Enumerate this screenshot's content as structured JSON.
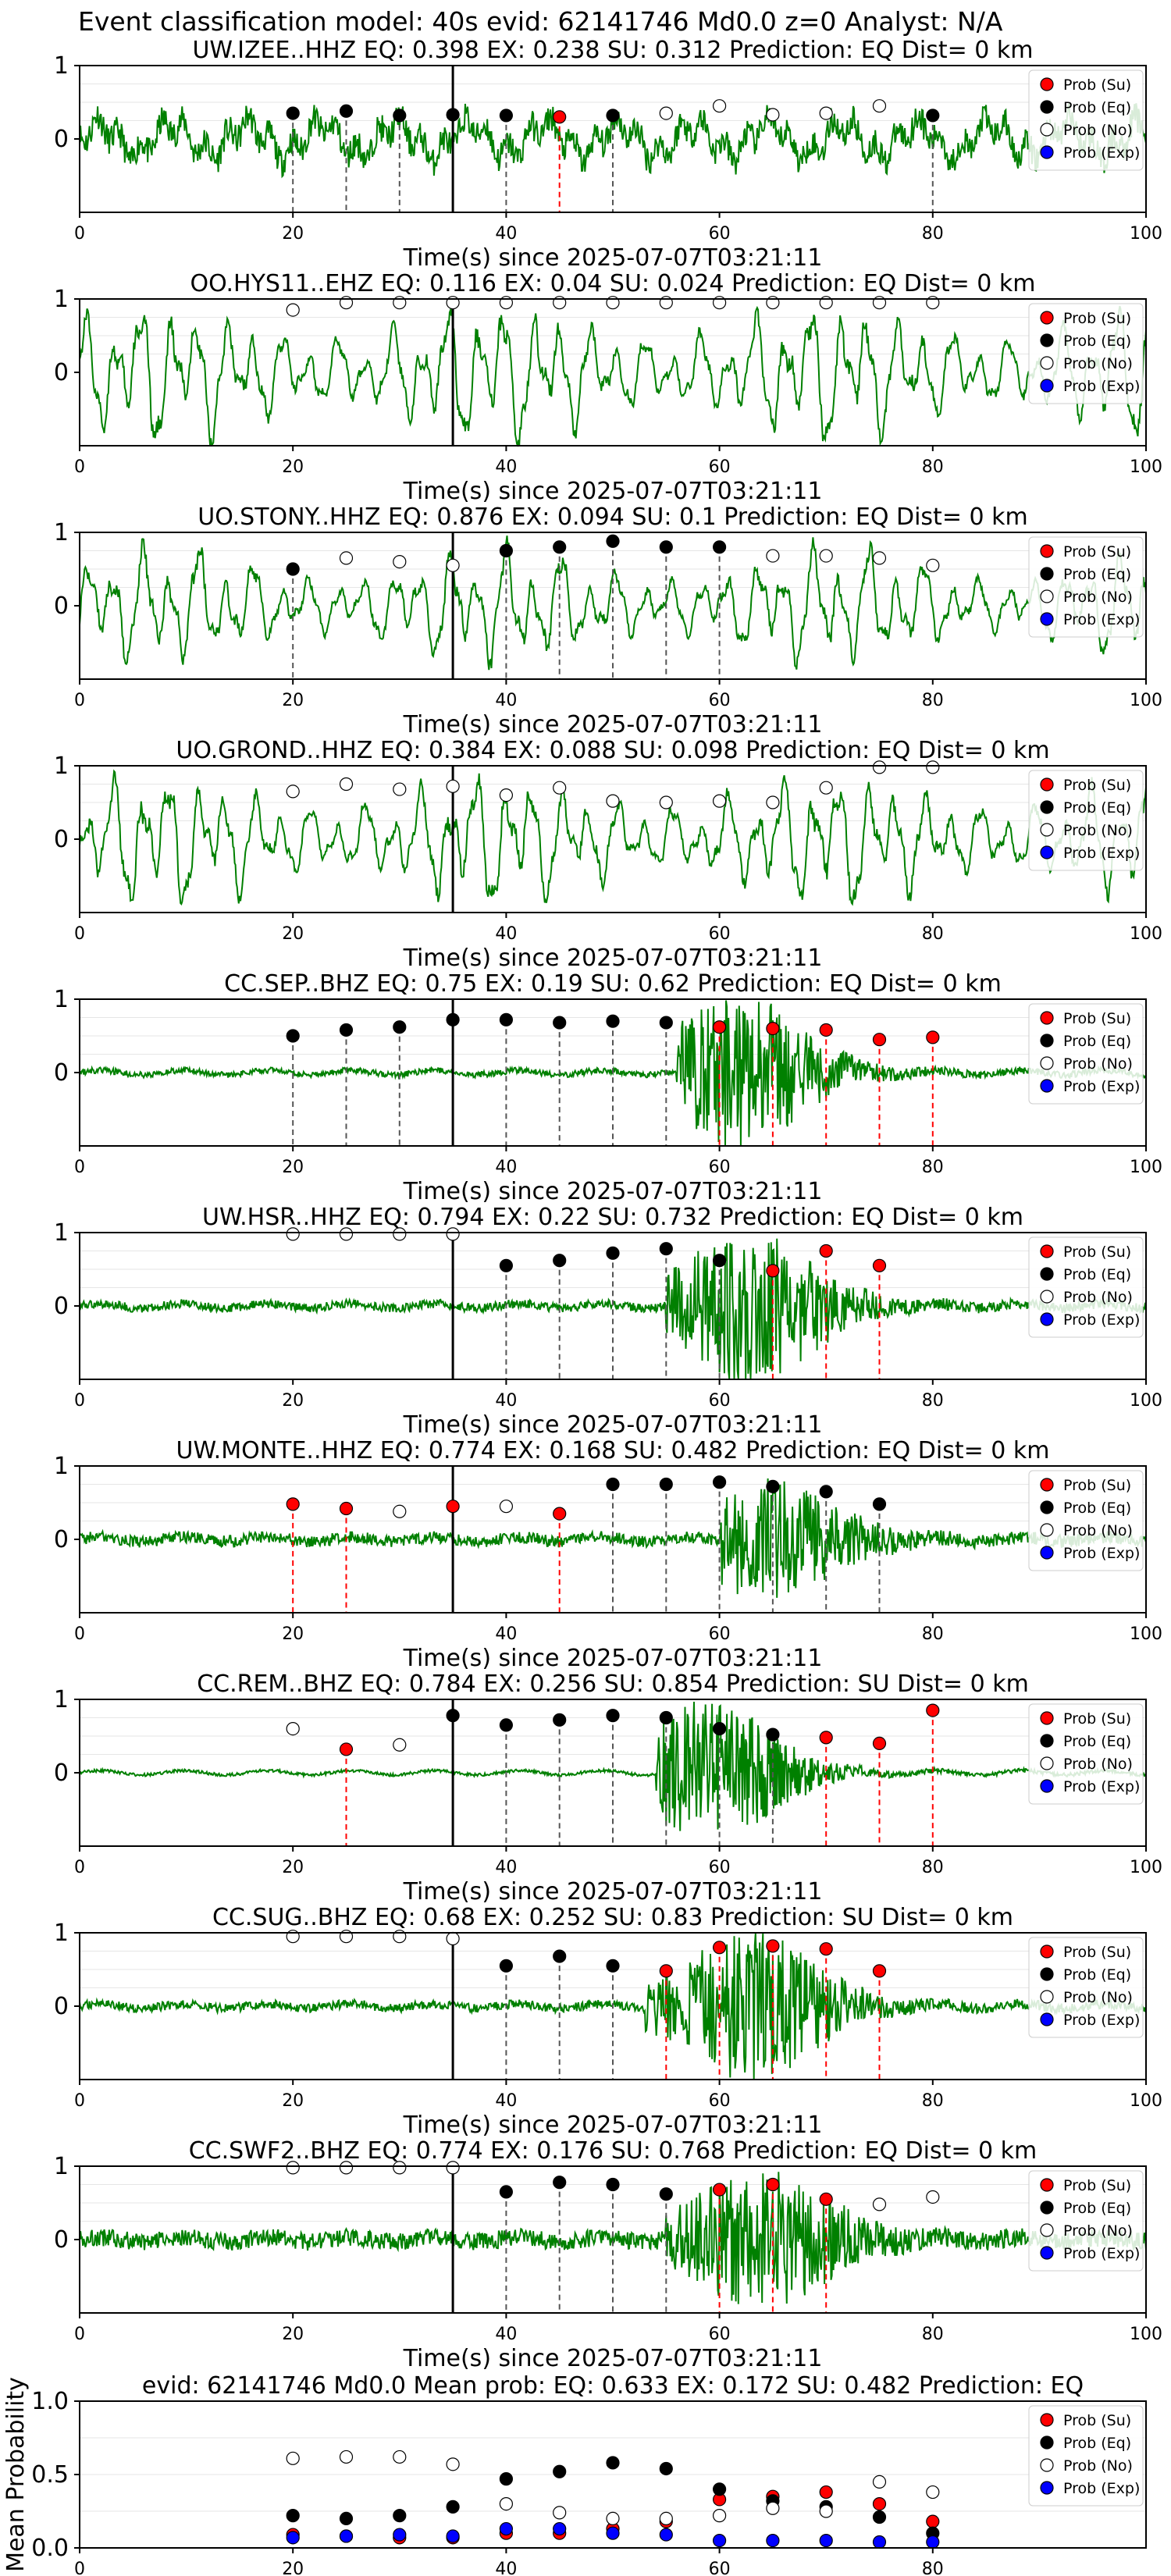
{
  "figure_title": "Event classification model: 40s evid: 62141746 Md0.0 z=0 Analyst: N/A",
  "legend": [
    "Prob (Su)",
    "Prob (Eq)",
    "Prob (No)",
    "Prob (Exp)"
  ],
  "colors": {
    "su": "#ff0000",
    "eq": "#000000",
    "no": "#ffffff",
    "exp": "#0000ff",
    "trace": "#008000",
    "grid": "#e6e6e6"
  },
  "xlabel": "Time(s) since 2025-07-07T03:21:11",
  "mean_ylabel": "Mean Probability",
  "chart_data": [
    {
      "type": "line",
      "title": "UW.IZEE..HHZ   EQ: 0.398  EX: 0.238  SU: 0.312   Prediction: EQ    Dist= 0 km",
      "trace": "broadband",
      "amp": 0.55,
      "xlim": [
        0,
        100
      ],
      "xticks": [
        0,
        20,
        40,
        60,
        80,
        100
      ],
      "yticks": [
        0,
        1
      ],
      "ylim": [
        -1,
        1
      ],
      "pick": 35,
      "points": [
        {
          "x": 20,
          "y": 0.35,
          "c": "eq"
        },
        {
          "x": 25,
          "y": 0.38,
          "c": "eq"
        },
        {
          "x": 30,
          "y": 0.32,
          "c": "eq"
        },
        {
          "x": 35,
          "y": 0.33,
          "c": "eq"
        },
        {
          "x": 40,
          "y": 0.32,
          "c": "eq"
        },
        {
          "x": 45,
          "y": 0.3,
          "c": "su"
        },
        {
          "x": 50,
          "y": 0.32,
          "c": "eq"
        },
        {
          "x": 55,
          "y": 0.35,
          "c": "no"
        },
        {
          "x": 60,
          "y": 0.45,
          "c": "no"
        },
        {
          "x": 65,
          "y": 0.33,
          "c": "no"
        },
        {
          "x": 70,
          "y": 0.35,
          "c": "no"
        },
        {
          "x": 75,
          "y": 0.45,
          "c": "no"
        },
        {
          "x": 80,
          "y": 0.32,
          "c": "eq"
        }
      ]
    },
    {
      "type": "line",
      "title": "OO.HYS11..EHZ   EQ: 0.116  EX: 0.04  SU: 0.024   Prediction: EQ    Dist= 0 km",
      "trace": "oscillating",
      "amp": 0.9,
      "xlim": [
        0,
        100
      ],
      "xticks": [
        0,
        20,
        40,
        60,
        80,
        100
      ],
      "yticks": [
        0,
        1
      ],
      "ylim": [
        -1,
        1
      ],
      "pick": 35,
      "points": [
        {
          "x": 20,
          "y": 0.85,
          "c": "no"
        },
        {
          "x": 25,
          "y": 0.95,
          "c": "no"
        },
        {
          "x": 30,
          "y": 0.95,
          "c": "no"
        },
        {
          "x": 35,
          "y": 0.95,
          "c": "no"
        },
        {
          "x": 40,
          "y": 0.95,
          "c": "no"
        },
        {
          "x": 45,
          "y": 0.95,
          "c": "no"
        },
        {
          "x": 50,
          "y": 0.95,
          "c": "no"
        },
        {
          "x": 55,
          "y": 0.95,
          "c": "no"
        },
        {
          "x": 60,
          "y": 0.95,
          "c": "no"
        },
        {
          "x": 65,
          "y": 0.95,
          "c": "no"
        },
        {
          "x": 70,
          "y": 0.95,
          "c": "no"
        },
        {
          "x": 75,
          "y": 0.95,
          "c": "no"
        },
        {
          "x": 80,
          "y": 0.95,
          "c": "no"
        }
      ]
    },
    {
      "type": "line",
      "title": "UO.STONY..HHZ   EQ: 0.876  EX: 0.094  SU: 0.1   Prediction: EQ    Dist= 0 km",
      "trace": "oscillating",
      "amp": 0.75,
      "xlim": [
        0,
        100
      ],
      "xticks": [
        0,
        20,
        40,
        60,
        80,
        100
      ],
      "yticks": [
        0,
        1
      ],
      "ylim": [
        -1,
        1
      ],
      "pick": 35,
      "points": [
        {
          "x": 20,
          "y": 0.5,
          "c": "eq"
        },
        {
          "x": 25,
          "y": 0.65,
          "c": "no"
        },
        {
          "x": 30,
          "y": 0.6,
          "c": "no"
        },
        {
          "x": 35,
          "y": 0.55,
          "c": "no"
        },
        {
          "x": 40,
          "y": 0.75,
          "c": "eq"
        },
        {
          "x": 45,
          "y": 0.8,
          "c": "eq"
        },
        {
          "x": 50,
          "y": 0.88,
          "c": "eq"
        },
        {
          "x": 55,
          "y": 0.8,
          "c": "eq"
        },
        {
          "x": 60,
          "y": 0.8,
          "c": "eq"
        },
        {
          "x": 65,
          "y": 0.68,
          "c": "no"
        },
        {
          "x": 70,
          "y": 0.68,
          "c": "no"
        },
        {
          "x": 75,
          "y": 0.65,
          "c": "no"
        },
        {
          "x": 80,
          "y": 0.55,
          "c": "no"
        }
      ]
    },
    {
      "type": "line",
      "title": "UO.GROND..HHZ   EQ: 0.384  EX: 0.088  SU: 0.098   Prediction: EQ    Dist= 0 km",
      "trace": "oscillating",
      "amp": 0.85,
      "xlim": [
        0,
        100
      ],
      "xticks": [
        0,
        20,
        40,
        60,
        80,
        100
      ],
      "yticks": [
        0,
        1
      ],
      "ylim": [
        -1,
        1
      ],
      "pick": 35,
      "points": [
        {
          "x": 20,
          "y": 0.65,
          "c": "no"
        },
        {
          "x": 25,
          "y": 0.75,
          "c": "no"
        },
        {
          "x": 30,
          "y": 0.68,
          "c": "no"
        },
        {
          "x": 35,
          "y": 0.72,
          "c": "no"
        },
        {
          "x": 40,
          "y": 0.6,
          "c": "no"
        },
        {
          "x": 45,
          "y": 0.7,
          "c": "no"
        },
        {
          "x": 50,
          "y": 0.52,
          "c": "no"
        },
        {
          "x": 55,
          "y": 0.5,
          "c": "no"
        },
        {
          "x": 60,
          "y": 0.52,
          "c": "no"
        },
        {
          "x": 65,
          "y": 0.5,
          "c": "no"
        },
        {
          "x": 70,
          "y": 0.7,
          "c": "no"
        },
        {
          "x": 75,
          "y": 0.98,
          "c": "no"
        },
        {
          "x": 80,
          "y": 0.98,
          "c": "no"
        }
      ]
    },
    {
      "type": "line",
      "title": "CC.SEP..BHZ   EQ: 0.75  EX: 0.19  SU: 0.62   Prediction: EQ    Dist= 0 km",
      "trace": "event",
      "amp": 0.04,
      "burst": 0.95,
      "onset": 56,
      "center": 62,
      "xlim": [
        0,
        100
      ],
      "xticks": [
        0,
        20,
        40,
        60,
        80,
        100
      ],
      "yticks": [
        0,
        1
      ],
      "ylim": [
        -1,
        1
      ],
      "pick": 35,
      "points": [
        {
          "x": 20,
          "y": 0.5,
          "c": "eq"
        },
        {
          "x": 25,
          "y": 0.58,
          "c": "eq"
        },
        {
          "x": 30,
          "y": 0.62,
          "c": "eq"
        },
        {
          "x": 35,
          "y": 0.72,
          "c": "eq"
        },
        {
          "x": 40,
          "y": 0.72,
          "c": "eq"
        },
        {
          "x": 45,
          "y": 0.68,
          "c": "eq"
        },
        {
          "x": 50,
          "y": 0.7,
          "c": "eq"
        },
        {
          "x": 55,
          "y": 0.68,
          "c": "eq"
        },
        {
          "x": 60,
          "y": 0.62,
          "c": "su"
        },
        {
          "x": 65,
          "y": 0.6,
          "c": "su"
        },
        {
          "x": 70,
          "y": 0.58,
          "c": "su"
        },
        {
          "x": 75,
          "y": 0.45,
          "c": "su"
        },
        {
          "x": 80,
          "y": 0.48,
          "c": "su"
        }
      ]
    },
    {
      "type": "line",
      "title": "UW.HSR..HHZ   EQ: 0.794  EX: 0.22  SU: 0.732   Prediction: EQ    Dist= 0 km",
      "trace": "event",
      "amp": 0.06,
      "burst": 0.95,
      "onset": 55,
      "center": 63,
      "xlim": [
        0,
        100
      ],
      "xticks": [
        0,
        20,
        40,
        60,
        80,
        100
      ],
      "yticks": [
        0,
        1
      ],
      "ylim": [
        -1,
        1
      ],
      "pick": 35,
      "points": [
        {
          "x": 20,
          "y": 0.98,
          "c": "no"
        },
        {
          "x": 25,
          "y": 0.98,
          "c": "no"
        },
        {
          "x": 30,
          "y": 0.98,
          "c": "no"
        },
        {
          "x": 35,
          "y": 0.98,
          "c": "no"
        },
        {
          "x": 40,
          "y": 0.55,
          "c": "eq"
        },
        {
          "x": 45,
          "y": 0.62,
          "c": "eq"
        },
        {
          "x": 50,
          "y": 0.72,
          "c": "eq"
        },
        {
          "x": 55,
          "y": 0.78,
          "c": "eq"
        },
        {
          "x": 60,
          "y": 0.62,
          "c": "eq"
        },
        {
          "x": 65,
          "y": 0.48,
          "c": "su"
        },
        {
          "x": 70,
          "y": 0.75,
          "c": "su"
        },
        {
          "x": 75,
          "y": 0.55,
          "c": "su"
        }
      ]
    },
    {
      "type": "line",
      "title": "UW.MONTE..HHZ   EQ: 0.774  EX: 0.168  SU: 0.482   Prediction: EQ    Dist= 0 km",
      "trace": "event",
      "amp": 0.08,
      "burst": 0.7,
      "onset": 60,
      "center": 65,
      "xlim": [
        0,
        100
      ],
      "xticks": [
        0,
        20,
        40,
        60,
        80,
        100
      ],
      "yticks": [
        0,
        1
      ],
      "ylim": [
        -1,
        1
      ],
      "pick": 35,
      "points": [
        {
          "x": 20,
          "y": 0.48,
          "c": "su"
        },
        {
          "x": 25,
          "y": 0.42,
          "c": "su"
        },
        {
          "x": 30,
          "y": 0.38,
          "c": "no"
        },
        {
          "x": 35,
          "y": 0.45,
          "c": "su"
        },
        {
          "x": 40,
          "y": 0.45,
          "c": "no"
        },
        {
          "x": 45,
          "y": 0.35,
          "c": "su"
        },
        {
          "x": 50,
          "y": 0.75,
          "c": "eq"
        },
        {
          "x": 55,
          "y": 0.75,
          "c": "eq"
        },
        {
          "x": 60,
          "y": 0.78,
          "c": "eq"
        },
        {
          "x": 65,
          "y": 0.72,
          "c": "eq"
        },
        {
          "x": 70,
          "y": 0.65,
          "c": "eq"
        },
        {
          "x": 75,
          "y": 0.48,
          "c": "eq"
        }
      ]
    },
    {
      "type": "line",
      "title": "CC.REM..BHZ   EQ: 0.784  EX: 0.256  SU: 0.854   Prediction: SU    Dist= 0 km",
      "trace": "event",
      "amp": 0.02,
      "burst": 0.9,
      "onset": 54,
      "center": 59,
      "xlim": [
        0,
        100
      ],
      "xticks": [
        0,
        20,
        40,
        60,
        80,
        100
      ],
      "yticks": [
        0,
        1
      ],
      "ylim": [
        -1,
        1
      ],
      "pick": 35,
      "points": [
        {
          "x": 20,
          "y": 0.6,
          "c": "no"
        },
        {
          "x": 25,
          "y": 0.32,
          "c": "su"
        },
        {
          "x": 30,
          "y": 0.38,
          "c": "no"
        },
        {
          "x": 35,
          "y": 0.78,
          "c": "eq"
        },
        {
          "x": 40,
          "y": 0.65,
          "c": "eq"
        },
        {
          "x": 45,
          "y": 0.72,
          "c": "eq"
        },
        {
          "x": 50,
          "y": 0.78,
          "c": "eq"
        },
        {
          "x": 55,
          "y": 0.75,
          "c": "eq"
        },
        {
          "x": 60,
          "y": 0.6,
          "c": "eq"
        },
        {
          "x": 65,
          "y": 0.52,
          "c": "eq"
        },
        {
          "x": 70,
          "y": 0.48,
          "c": "su"
        },
        {
          "x": 75,
          "y": 0.4,
          "c": "su"
        },
        {
          "x": 80,
          "y": 0.85,
          "c": "su"
        }
      ]
    },
    {
      "type": "line",
      "title": "CC.SUG..BHZ   EQ: 0.68  EX: 0.252  SU: 0.83   Prediction: SU    Dist= 0 km",
      "trace": "event",
      "amp": 0.06,
      "burst": 0.95,
      "onset": 53,
      "center": 63,
      "xlim": [
        0,
        100
      ],
      "xticks": [
        0,
        20,
        40,
        60,
        80,
        100
      ],
      "yticks": [
        0,
        1
      ],
      "ylim": [
        -1,
        1
      ],
      "pick": 35,
      "points": [
        {
          "x": 20,
          "y": 0.95,
          "c": "no"
        },
        {
          "x": 25,
          "y": 0.95,
          "c": "no"
        },
        {
          "x": 30,
          "y": 0.95,
          "c": "no"
        },
        {
          "x": 35,
          "y": 0.92,
          "c": "no"
        },
        {
          "x": 40,
          "y": 0.55,
          "c": "eq"
        },
        {
          "x": 45,
          "y": 0.68,
          "c": "eq"
        },
        {
          "x": 50,
          "y": 0.55,
          "c": "eq"
        },
        {
          "x": 55,
          "y": 0.48,
          "c": "su"
        },
        {
          "x": 60,
          "y": 0.8,
          "c": "su"
        },
        {
          "x": 65,
          "y": 0.82,
          "c": "su"
        },
        {
          "x": 70,
          "y": 0.78,
          "c": "su"
        },
        {
          "x": 75,
          "y": 0.48,
          "c": "su"
        }
      ]
    },
    {
      "type": "line",
      "title": "CC.SWF2..BHZ   EQ: 0.774  EX: 0.176  SU: 0.768   Prediction: EQ    Dist= 0 km",
      "trace": "event",
      "amp": 0.12,
      "burst": 0.8,
      "onset": 55,
      "center": 64,
      "xlim": [
        0,
        100
      ],
      "xticks": [
        0,
        20,
        40,
        60,
        80,
        100
      ],
      "yticks": [
        0,
        1
      ],
      "ylim": [
        -1,
        1
      ],
      "pick": 35,
      "points": [
        {
          "x": 20,
          "y": 0.98,
          "c": "no"
        },
        {
          "x": 25,
          "y": 0.98,
          "c": "no"
        },
        {
          "x": 30,
          "y": 0.98,
          "c": "no"
        },
        {
          "x": 35,
          "y": 0.98,
          "c": "no"
        },
        {
          "x": 40,
          "y": 0.65,
          "c": "eq"
        },
        {
          "x": 45,
          "y": 0.78,
          "c": "eq"
        },
        {
          "x": 50,
          "y": 0.75,
          "c": "eq"
        },
        {
          "x": 55,
          "y": 0.62,
          "c": "eq"
        },
        {
          "x": 60,
          "y": 0.68,
          "c": "su"
        },
        {
          "x": 65,
          "y": 0.75,
          "c": "su"
        },
        {
          "x": 70,
          "y": 0.55,
          "c": "su"
        },
        {
          "x": 75,
          "y": 0.48,
          "c": "no"
        },
        {
          "x": 80,
          "y": 0.58,
          "c": "no"
        }
      ]
    },
    {
      "type": "scatter",
      "title": "evid: 62141746  Md0.0   Mean prob:   EQ: 0.633  EX: 0.172  SU: 0.482   Prediction: EQ",
      "ylabel": "Mean Probability",
      "xlim": [
        0,
        100
      ],
      "ylim": [
        0,
        1
      ],
      "xticks": [
        0,
        20,
        40,
        60,
        80
      ],
      "yticks": [
        0.0,
        0.5,
        1.0
      ],
      "ytick_labels": [
        "0.0",
        "0.5",
        "1.0"
      ],
      "series": [
        {
          "name": "Prob (Su)",
          "c": "su",
          "x": [
            20,
            25,
            30,
            35,
            40,
            45,
            50,
            55,
            60,
            65,
            70,
            75,
            80
          ],
          "y": [
            0.09,
            0.08,
            0.07,
            0.07,
            0.1,
            0.1,
            0.13,
            0.18,
            0.33,
            0.35,
            0.38,
            0.3,
            0.18
          ]
        },
        {
          "name": "Prob (Eq)",
          "c": "eq",
          "x": [
            20,
            25,
            30,
            35,
            40,
            45,
            50,
            55,
            60,
            65,
            70,
            75,
            80
          ],
          "y": [
            0.22,
            0.2,
            0.22,
            0.28,
            0.47,
            0.52,
            0.58,
            0.54,
            0.4,
            0.32,
            0.28,
            0.21,
            0.1
          ]
        },
        {
          "name": "Prob (No)",
          "c": "no",
          "x": [
            20,
            25,
            30,
            35,
            40,
            45,
            50,
            55,
            60,
            65,
            70,
            75,
            80
          ],
          "y": [
            0.61,
            0.62,
            0.62,
            0.57,
            0.3,
            0.24,
            0.2,
            0.2,
            0.22,
            0.27,
            0.25,
            0.45,
            0.38
          ]
        },
        {
          "name": "Prob (Exp)",
          "c": "exp",
          "x": [
            20,
            25,
            30,
            35,
            40,
            45,
            50,
            55,
            60,
            65,
            70,
            75,
            80
          ],
          "y": [
            0.07,
            0.08,
            0.09,
            0.08,
            0.13,
            0.13,
            0.1,
            0.09,
            0.05,
            0.05,
            0.05,
            0.04,
            0.04
          ]
        }
      ]
    }
  ]
}
